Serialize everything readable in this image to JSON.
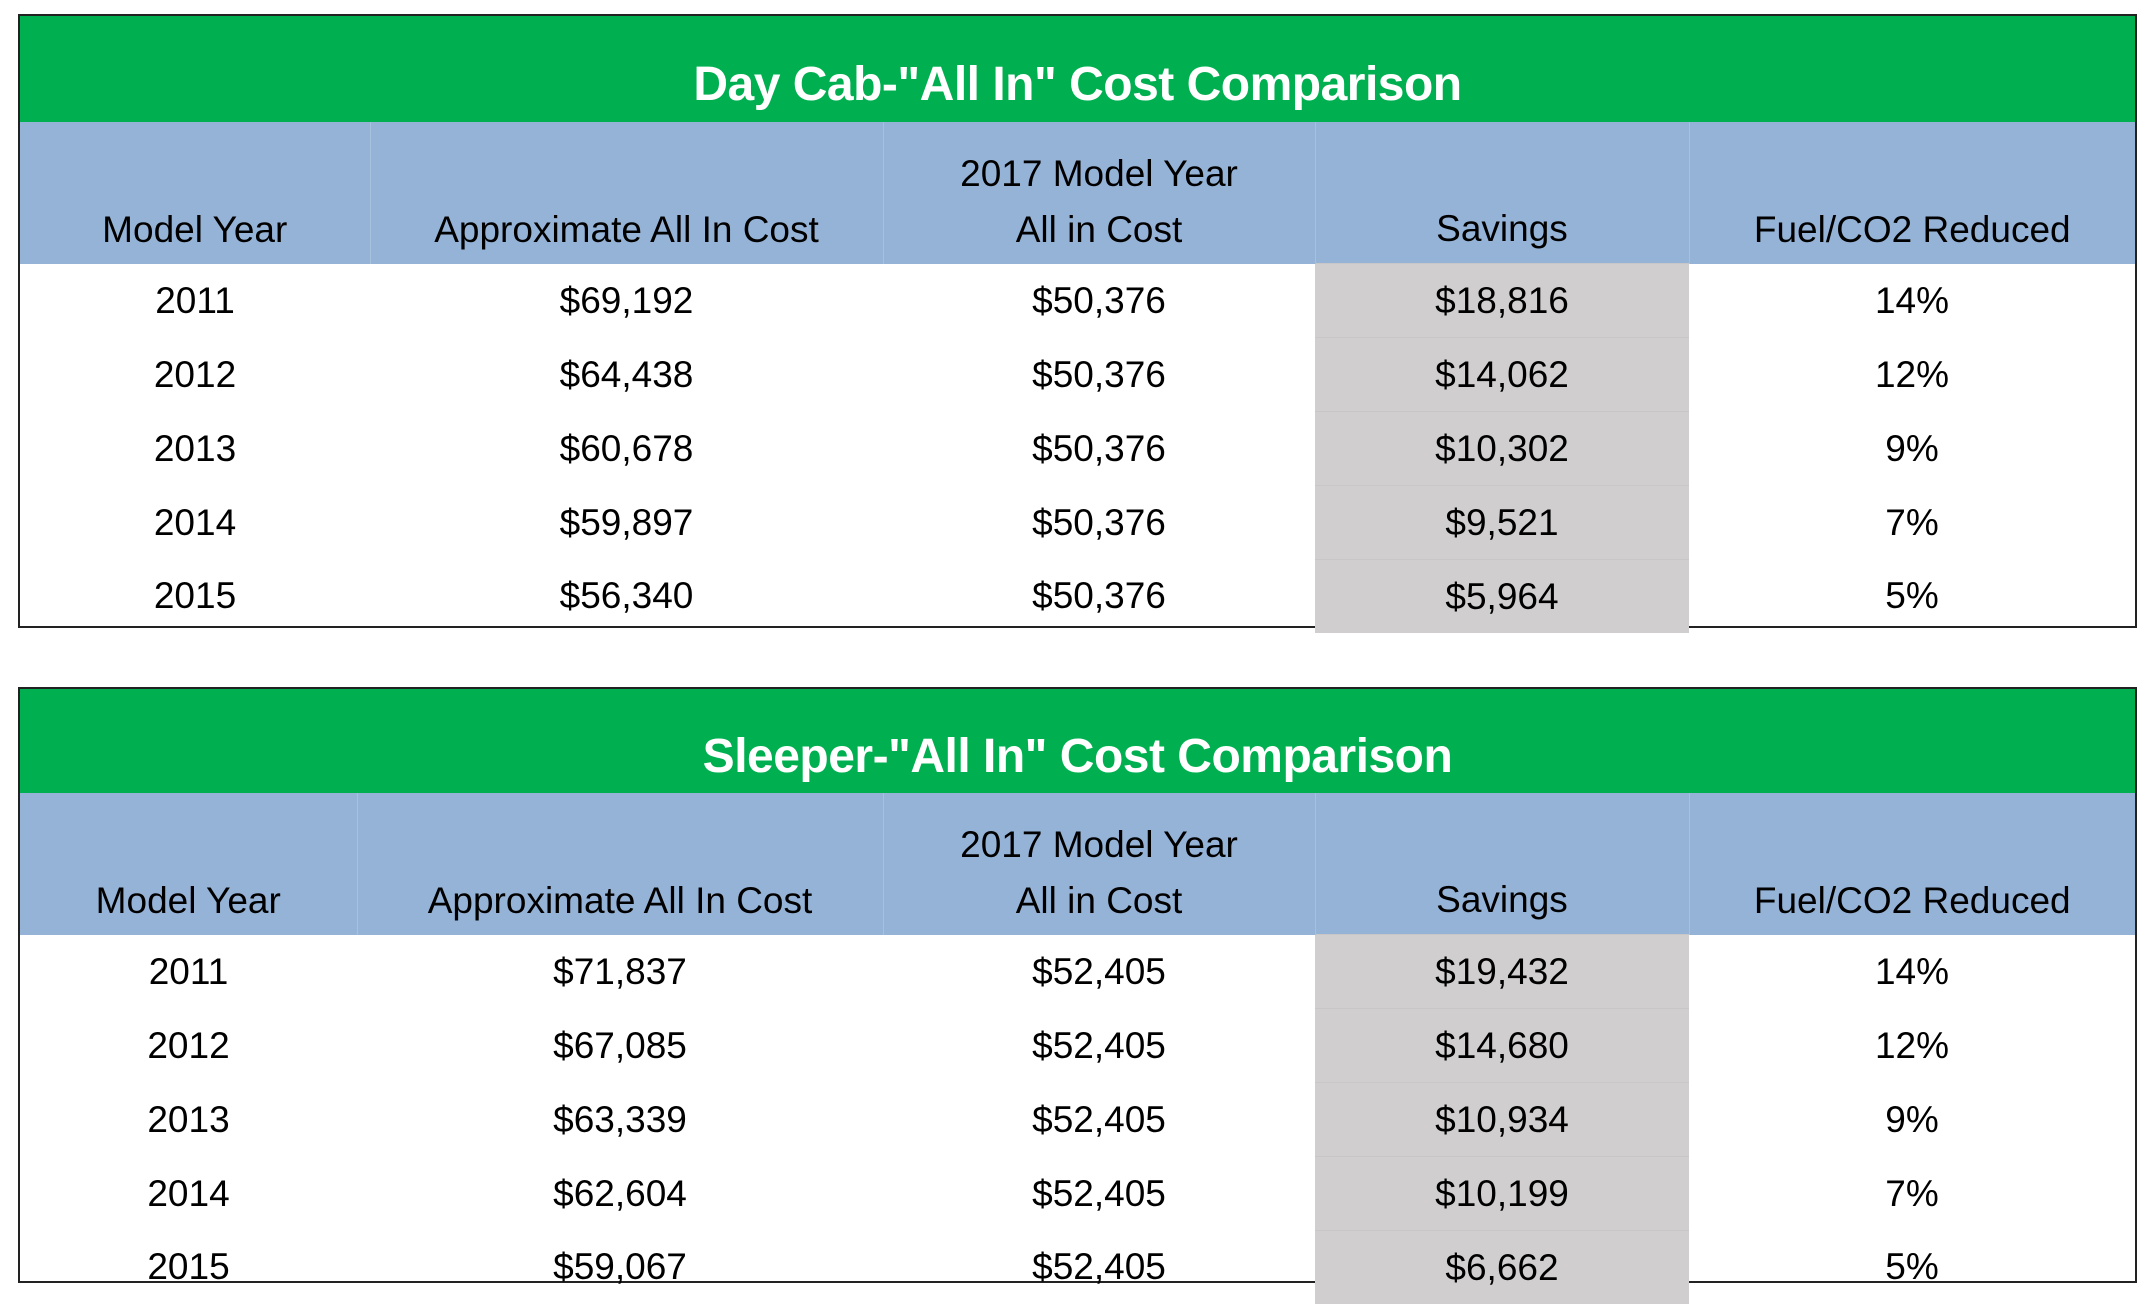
{
  "colors": {
    "title_bg": "#00B050",
    "header_bg": "#95B3D7",
    "savings_bg": "#D0CECE"
  },
  "columns": {
    "model_year": "Model Year",
    "approx_cost": "Approximate All In Cost",
    "model2017_line1": "2017 Model Year",
    "model2017_line2": "All in Cost",
    "savings": "Savings",
    "fuel": "Fuel/CO2 Reduced"
  },
  "tables": [
    {
      "title": "Day Cab-\"All In\" Cost Comparison",
      "rows": [
        [
          "2011",
          "$69,192",
          "$50,376",
          "$18,816",
          "14%"
        ],
        [
          "2012",
          "$64,438",
          "$50,376",
          "$14,062",
          "12%"
        ],
        [
          "2013",
          "$60,678",
          "$50,376",
          "$10,302",
          "9%"
        ],
        [
          "2014",
          "$59,897",
          "$50,376",
          "$9,521",
          "7%"
        ],
        [
          "2015",
          "$56,340",
          "$50,376",
          "$5,964",
          "5%"
        ]
      ]
    },
    {
      "title": "Sleeper-\"All In\" Cost Comparison",
      "rows": [
        [
          "2011",
          "$71,837",
          "$52,405",
          "$19,432",
          "14%"
        ],
        [
          "2012",
          "$67,085",
          "$52,405",
          "$14,680",
          "12%"
        ],
        [
          "2013",
          "$63,339",
          "$52,405",
          "$10,934",
          "9%"
        ],
        [
          "2014",
          "$62,604",
          "$52,405",
          "$10,199",
          "7%"
        ],
        [
          "2015",
          "$59,067",
          "$52,405",
          "$6,662",
          "5%"
        ]
      ]
    }
  ]
}
